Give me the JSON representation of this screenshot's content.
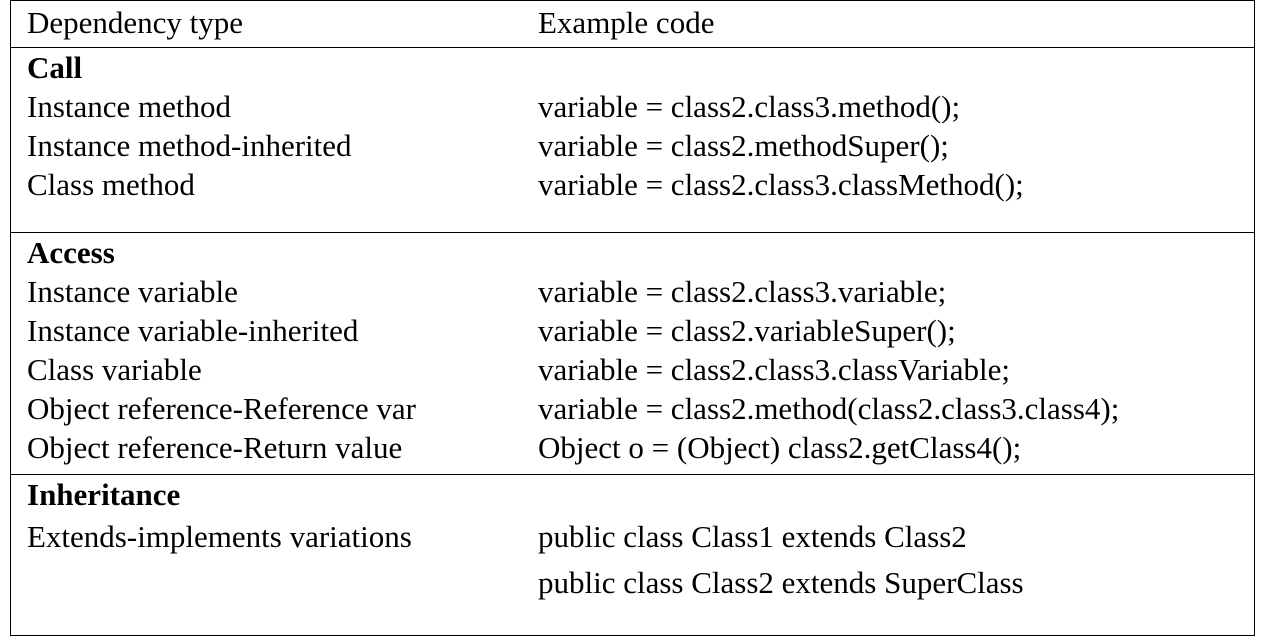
{
  "table": {
    "headers": {
      "dependency_type": "Dependency type",
      "example_code": "Example code"
    },
    "groups": [
      {
        "title": "Call",
        "rows": [
          {
            "type": "Instance method",
            "code": "variable = class2.class3.method();"
          },
          {
            "type": "Instance method-inherited",
            "code": "variable = class2.methodSuper();"
          },
          {
            "type": "Class method",
            "code": "variable = class2.class3.classMethod();"
          }
        ]
      },
      {
        "title": "Access",
        "rows": [
          {
            "type": "Instance variable",
            "code": "variable = class2.class3.variable;"
          },
          {
            "type": "Instance variable-inherited",
            "code": "variable = class2.variableSuper();"
          },
          {
            "type": "Class variable",
            "code": "variable = class2.class3.classVariable;"
          },
          {
            "type": "Object reference-Reference var",
            "code": "variable = class2.method(class2.class3.class4);"
          },
          {
            "type": "Object reference-Return value",
            "code": "Object o = (Object) class2.getClass4();"
          }
        ]
      },
      {
        "title": "Inheritance",
        "rows": [
          {
            "type": "Extends-implements variations",
            "code": "public class Class1 extends Class2"
          },
          {
            "type": "",
            "code": "public class Class2 extends SuperClass"
          }
        ]
      }
    ]
  }
}
